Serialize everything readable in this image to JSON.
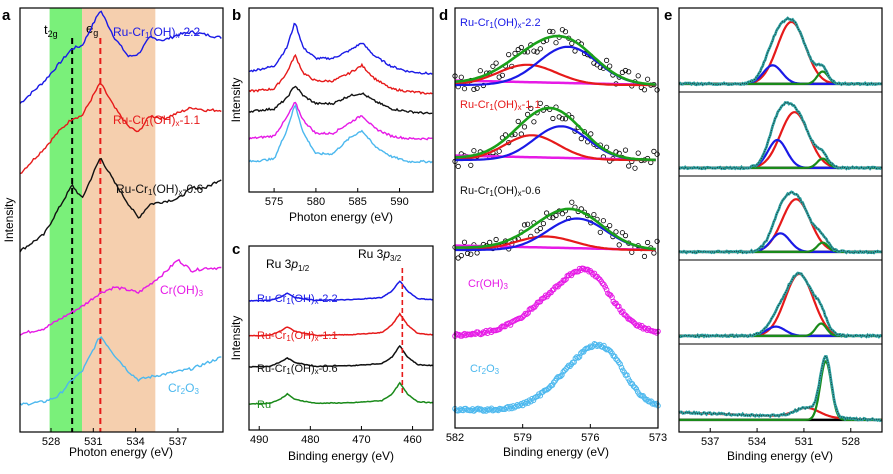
{
  "colors": {
    "blue": "#1a1ae6",
    "red": "#e61a1a",
    "black": "#111111",
    "magenta": "#e61ae6",
    "cyan": "#4cb8ee",
    "green": "#1a8a1a",
    "t2g_band": "#7af07a",
    "eg_band": "#f5cfae",
    "fit_green": "#1aa01a",
    "fit_teal": "#2a9f9f"
  },
  "chart_data": [
    {
      "panel": "a",
      "type": "line",
      "xlabel": "Photon energy (eV)",
      "ylabel": "Intensity",
      "xlim": [
        525.8,
        540.2
      ],
      "xticks": [
        528,
        531,
        534,
        537
      ],
      "bands": [
        "t2g",
        "eg"
      ],
      "t2g_label_base": "t",
      "t2g_label_sub": "2g",
      "eg_label_base": "e",
      "eg_label_sub": "g",
      "t2g_band": [
        527.9,
        530.2
      ],
      "eg_band": [
        530.2,
        535.4
      ],
      "t2g_peak": 529.5,
      "eg_peak": 531.5,
      "series": [
        {
          "name": "Ru-Cr1(OH)x-2.2",
          "color": "blue",
          "offset": 4,
          "x": [
            525.8,
            527.5,
            528.5,
            529.5,
            530.2,
            531.5,
            532.5,
            533.5,
            534.2,
            535,
            536,
            537,
            538,
            539,
            540
          ],
          "y": [
            0.3,
            0.7,
            1.0,
            1.3,
            1.35,
            2.0,
            1.5,
            1.15,
            1.2,
            1.5,
            1.45,
            1.55,
            1.6,
            1.55,
            1.5
          ]
        },
        {
          "name": "Ru-Cr1(OH)x-1.1",
          "color": "red",
          "offset": 3,
          "x": [
            525.8,
            527.5,
            528.5,
            529.5,
            530.2,
            531.5,
            532.5,
            533.5,
            534.2,
            535,
            536,
            537,
            538,
            539,
            540
          ],
          "y": [
            0.3,
            0.75,
            1.05,
            1.3,
            1.35,
            1.95,
            1.5,
            1.15,
            1.05,
            1.35,
            1.3,
            1.4,
            1.5,
            1.45,
            1.45
          ]
        },
        {
          "name": "Ru-Cr1(OH)x-0.6",
          "color": "black",
          "offset": 2,
          "x": [
            525.8,
            527.5,
            528.5,
            529.5,
            530.2,
            531.5,
            532.5,
            533.5,
            534.2,
            535,
            536,
            537,
            538,
            539,
            540
          ],
          "y": [
            0.2,
            0.5,
            0.95,
            1.4,
            1.15,
            1.9,
            1.45,
            1.05,
            0.8,
            1.05,
            1.1,
            1.15,
            1.35,
            1.35,
            1.5
          ]
        },
        {
          "name": "Cr(OH)3",
          "color": "magenta",
          "offset": 1,
          "x": [
            525.8,
            527.5,
            528.5,
            529.5,
            530.2,
            531.5,
            532.5,
            533.5,
            534.2,
            535,
            536,
            537,
            538,
            539,
            540
          ],
          "y": [
            0.2,
            0.3,
            0.45,
            0.6,
            0.7,
            0.95,
            1.05,
            1.0,
            0.95,
            1.1,
            1.3,
            1.55,
            1.35,
            1.4,
            1.4
          ]
        },
        {
          "name": "Cr2O3",
          "color": "cyan",
          "offset": 0,
          "x": [
            525.8,
            527.5,
            528.5,
            529.5,
            530.2,
            531.5,
            532.5,
            533.5,
            534.2,
            535,
            536,
            537,
            538,
            539,
            540
          ],
          "y": [
            0.1,
            0.15,
            0.25,
            0.55,
            0.7,
            1.35,
            1.0,
            0.7,
            0.55,
            0.6,
            0.65,
            0.7,
            0.75,
            0.85,
            0.95
          ]
        }
      ],
      "labels": [
        {
          "base": "Ru-Cr",
          "sub": "1",
          "mid": "(OH)",
          "sub2": "x",
          "tail": "-2.2",
          "color": "blue"
        },
        {
          "base": "Ru-Cr",
          "sub": "1",
          "mid": "(OH)",
          "sub2": "x",
          "tail": "-1.1",
          "color": "red"
        },
        {
          "base": "Ru-Cr",
          "sub": "1",
          "mid": "(OH)",
          "sub2": "x",
          "tail": "-0.6",
          "color": "black"
        },
        {
          "base": "Cr(OH)",
          "sub": "3",
          "mid": "",
          "sub2": "",
          "tail": "",
          "color": "magenta"
        },
        {
          "base": "Cr",
          "sub": "2",
          "mid": "O",
          "sub2": "3",
          "tail": "",
          "color": "cyan"
        }
      ]
    },
    {
      "panel": "b",
      "type": "line",
      "xlabel": "Photon energy (eV)",
      "ylabel": "Intensity",
      "xlim": [
        572,
        594
      ],
      "xticks": [
        575,
        580,
        585,
        590
      ],
      "series": [
        {
          "name": "Ru-Cr1(OH)x-2.2",
          "color": "blue",
          "x": [
            572,
            575,
            576.5,
            577.5,
            578.5,
            580,
            582,
            584,
            585.5,
            587,
            589,
            591,
            594
          ],
          "y": [
            0.55,
            0.65,
            1.0,
            1.5,
            1.0,
            0.8,
            0.8,
            0.95,
            1.1,
            0.85,
            0.65,
            0.55,
            0.5
          ]
        },
        {
          "name": "Ru-Cr1(OH)x-1.1",
          "color": "red",
          "x": [
            572,
            575,
            576.5,
            577.5,
            578.5,
            580,
            582,
            584,
            585.5,
            587,
            589,
            591,
            594
          ],
          "y": [
            0.55,
            0.6,
            0.9,
            1.25,
            0.9,
            0.75,
            0.75,
            0.9,
            1.05,
            0.8,
            0.6,
            0.55,
            0.5
          ]
        },
        {
          "name": "Ru-Cr1(OH)x-0.6",
          "color": "black",
          "x": [
            572,
            575,
            576.5,
            577.5,
            578.5,
            580,
            582,
            584,
            585.5,
            587,
            589,
            591,
            594
          ],
          "y": [
            0.55,
            0.6,
            0.8,
            1.05,
            0.85,
            0.7,
            0.7,
            0.85,
            0.9,
            0.75,
            0.6,
            0.55,
            0.5
          ]
        },
        {
          "name": "Cr(OH)3",
          "color": "magenta",
          "x": [
            572,
            575,
            576.5,
            577.5,
            578.5,
            580,
            582,
            584,
            585.5,
            587,
            589,
            591,
            594
          ],
          "y": [
            0.45,
            0.5,
            0.85,
            1.15,
            0.8,
            0.55,
            0.55,
            0.75,
            0.9,
            0.65,
            0.5,
            0.45,
            0.45
          ]
        },
        {
          "name": "Cr2O3",
          "color": "cyan",
          "x": [
            572,
            575,
            576.5,
            577.5,
            578.5,
            580,
            582,
            584,
            585.5,
            587,
            589,
            591,
            594
          ],
          "y": [
            0.45,
            0.5,
            1.05,
            1.55,
            1.0,
            0.6,
            0.6,
            0.9,
            1.05,
            0.75,
            0.55,
            0.45,
            0.45
          ]
        }
      ]
    },
    {
      "panel": "c",
      "type": "line",
      "xlabel": "Binding energy (eV)",
      "ylabel": "Intensity",
      "xlim": [
        492,
        456
      ],
      "xticks": [
        490,
        480,
        470,
        460
      ],
      "peak_label_1": {
        "base": "Ru 3",
        "ital": "p",
        "sub": "1/2"
      },
      "peak_label_2": {
        "base": "Ru 3",
        "ital": "p",
        "sub": "3/2"
      },
      "dashed_line_x": 462,
      "series": [
        {
          "name": "Ru-Cr1(OH)x-2.2",
          "color": "blue",
          "x": [
            492,
            488,
            486,
            484.5,
            483,
            479,
            472,
            466,
            464,
            462.5,
            461,
            459,
            456
          ],
          "y": [
            0.1,
            0.12,
            0.25,
            0.45,
            0.25,
            0.12,
            0.15,
            0.25,
            0.55,
            1.0,
            0.55,
            0.2,
            0.15
          ]
        },
        {
          "name": "Ru-Cr1(OH)x-1.1",
          "color": "red",
          "x": [
            492,
            488,
            486,
            484.5,
            483,
            479,
            472,
            466,
            464,
            462.5,
            461,
            459,
            456
          ],
          "y": [
            0.1,
            0.12,
            0.3,
            0.5,
            0.3,
            0.12,
            0.15,
            0.25,
            0.6,
            1.1,
            0.6,
            0.2,
            0.15
          ]
        },
        {
          "name": "Ru-Cr1(OH)x-0.6",
          "color": "black",
          "x": [
            492,
            488,
            486,
            484.5,
            483,
            479,
            472,
            466,
            464,
            462.5,
            461,
            459,
            456
          ],
          "y": [
            0.1,
            0.12,
            0.3,
            0.5,
            0.3,
            0.12,
            0.15,
            0.25,
            0.55,
            1.05,
            0.55,
            0.2,
            0.15
          ]
        },
        {
          "name": "Ru",
          "color": "green",
          "x": [
            492,
            488,
            486,
            484.5,
            483,
            479,
            472,
            466,
            464,
            462.5,
            461,
            459,
            456
          ],
          "y": [
            0.05,
            0.08,
            0.25,
            0.5,
            0.25,
            0.08,
            0.1,
            0.2,
            0.5,
            1.0,
            0.5,
            0.15,
            0.1
          ]
        }
      ],
      "labels": [
        {
          "base": "Ru-Cr",
          "sub": "1",
          "mid": "(OH)",
          "sub2": "x",
          "tail": "-2.2",
          "color": "blue"
        },
        {
          "base": "Ru-Cr",
          "sub": "1",
          "mid": "(OH)",
          "sub2": "x",
          "tail": "-1.1",
          "color": "red"
        },
        {
          "base": "Ru-Cr",
          "sub": "1",
          "mid": "(OH)",
          "sub2": "x",
          "tail": "-0.6",
          "color": "black"
        },
        {
          "base": "Ru",
          "sub": "",
          "mid": "",
          "sub2": "",
          "tail": "",
          "color": "green"
        }
      ]
    },
    {
      "panel": "d",
      "type": "scatter",
      "xlabel": "Binding energy (eV)",
      "xlim": [
        582,
        573
      ],
      "xticks": [
        582,
        579,
        576,
        573
      ],
      "labels": [
        {
          "base": "Ru-Cr",
          "sub": "1",
          "mid": "(OH)",
          "sub2": "x",
          "tail": "-2.2",
          "color": "blue"
        },
        {
          "base": "Ru-Cr",
          "sub": "1",
          "mid": "(OH)",
          "sub2": "x",
          "tail": "-1.1",
          "color": "red"
        },
        {
          "base": "Ru-Cr",
          "sub": "1",
          "mid": "(OH)",
          "sub2": "x",
          "tail": "-0.6",
          "color": "black"
        },
        {
          "base": "Cr(OH)",
          "sub": "3",
          "mid": "",
          "sub2": "",
          "tail": "",
          "color": "magenta"
        },
        {
          "base": "Cr",
          "sub": "2",
          "mid": "O",
          "sub2": "3",
          "tail": "",
          "color": "cyan"
        }
      ],
      "fits": [
        {
          "name": "Ru-Cr1(OH)x-2.2",
          "red_center": 578.8,
          "red_amp": 0.45,
          "blue_center": 577.0,
          "blue_amp": 0.85,
          "width": 1.3
        },
        {
          "name": "Ru-Cr1(OH)x-1.1",
          "red_center": 578.6,
          "red_amp": 0.55,
          "blue_center": 577.3,
          "blue_amp": 0.75,
          "width": 1.2
        },
        {
          "name": "Ru-Cr1(OH)x-0.6",
          "red_center": 578.0,
          "red_amp": 0.3,
          "blue_center": 576.6,
          "blue_amp": 0.7,
          "width": 1.3
        }
      ],
      "envelopes": [
        {
          "name": "Cr(OH)3",
          "color": "magenta",
          "center": 576.8,
          "width": 1.6,
          "amp": 1.0
        },
        {
          "name": "Cr2O3",
          "color": "cyan",
          "center": 576.1,
          "width": 1.4,
          "amp": 1.0
        }
      ]
    },
    {
      "panel": "e",
      "type": "line",
      "xlabel": "Binding energy (eV)",
      "xlim": [
        539,
        526
      ],
      "xticks": [
        537,
        534,
        531,
        528
      ],
      "subpanels": [
        {
          "main": 531.8,
          "main_amp": 1.0,
          "blue": 533.0,
          "blue_amp": 0.3,
          "green": 529.8,
          "green_amp": 0.2
        },
        {
          "main": 531.6,
          "main_amp": 0.9,
          "blue": 532.7,
          "blue_amp": 0.45,
          "green": 529.8,
          "green_amp": 0.15
        },
        {
          "main": 531.5,
          "main_amp": 0.85,
          "blue": 532.5,
          "blue_amp": 0.3,
          "green": 529.8,
          "green_amp": 0.15
        },
        {
          "main": 531.3,
          "main_amp": 1.0,
          "blue": 532.8,
          "blue_amp": 0.15,
          "green": 529.9,
          "green_amp": 0.2
        },
        {
          "main": 529.6,
          "main_amp": 1.0,
          "blue": 0,
          "blue_amp": 0,
          "green": 529.6,
          "green_amp": 0.95
        }
      ]
    }
  ],
  "panel_labels": {
    "a": "a",
    "b": "b",
    "c": "c",
    "d": "d",
    "e": "e"
  }
}
